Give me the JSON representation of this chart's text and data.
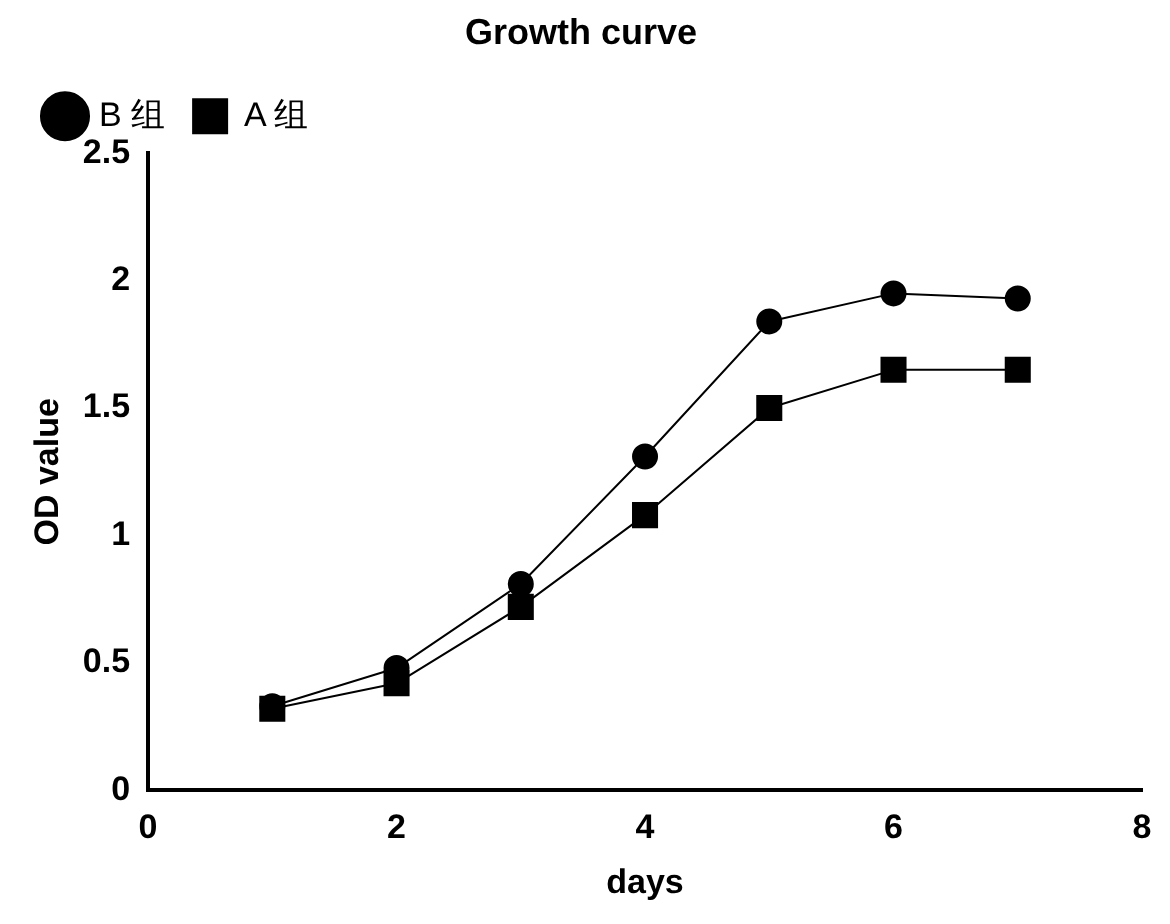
{
  "chart_data": {
    "type": "line",
    "title": "Growth curve",
    "xlabel": "days",
    "ylabel": "OD value",
    "x": [
      1,
      2,
      3,
      4,
      5,
      6,
      7
    ],
    "series": [
      {
        "name": "B 组",
        "color": "#000000",
        "marker": "circle",
        "values": [
          0.33,
          0.48,
          0.81,
          1.31,
          1.84,
          1.95,
          1.93
        ]
      },
      {
        "name": "A 组",
        "color": "#000000",
        "marker": "square",
        "values": [
          0.32,
          0.42,
          0.72,
          1.08,
          1.5,
          1.65,
          1.65
        ]
      }
    ],
    "xlim": [
      0,
      8
    ],
    "xticks": [
      0,
      2,
      4,
      6,
      8
    ],
    "ylim": [
      0,
      2.5
    ],
    "yticks": [
      0,
      0.5,
      1,
      1.5,
      2,
      2.5
    ],
    "grid": false,
    "legend": "top left",
    "line_style": "solid"
  }
}
